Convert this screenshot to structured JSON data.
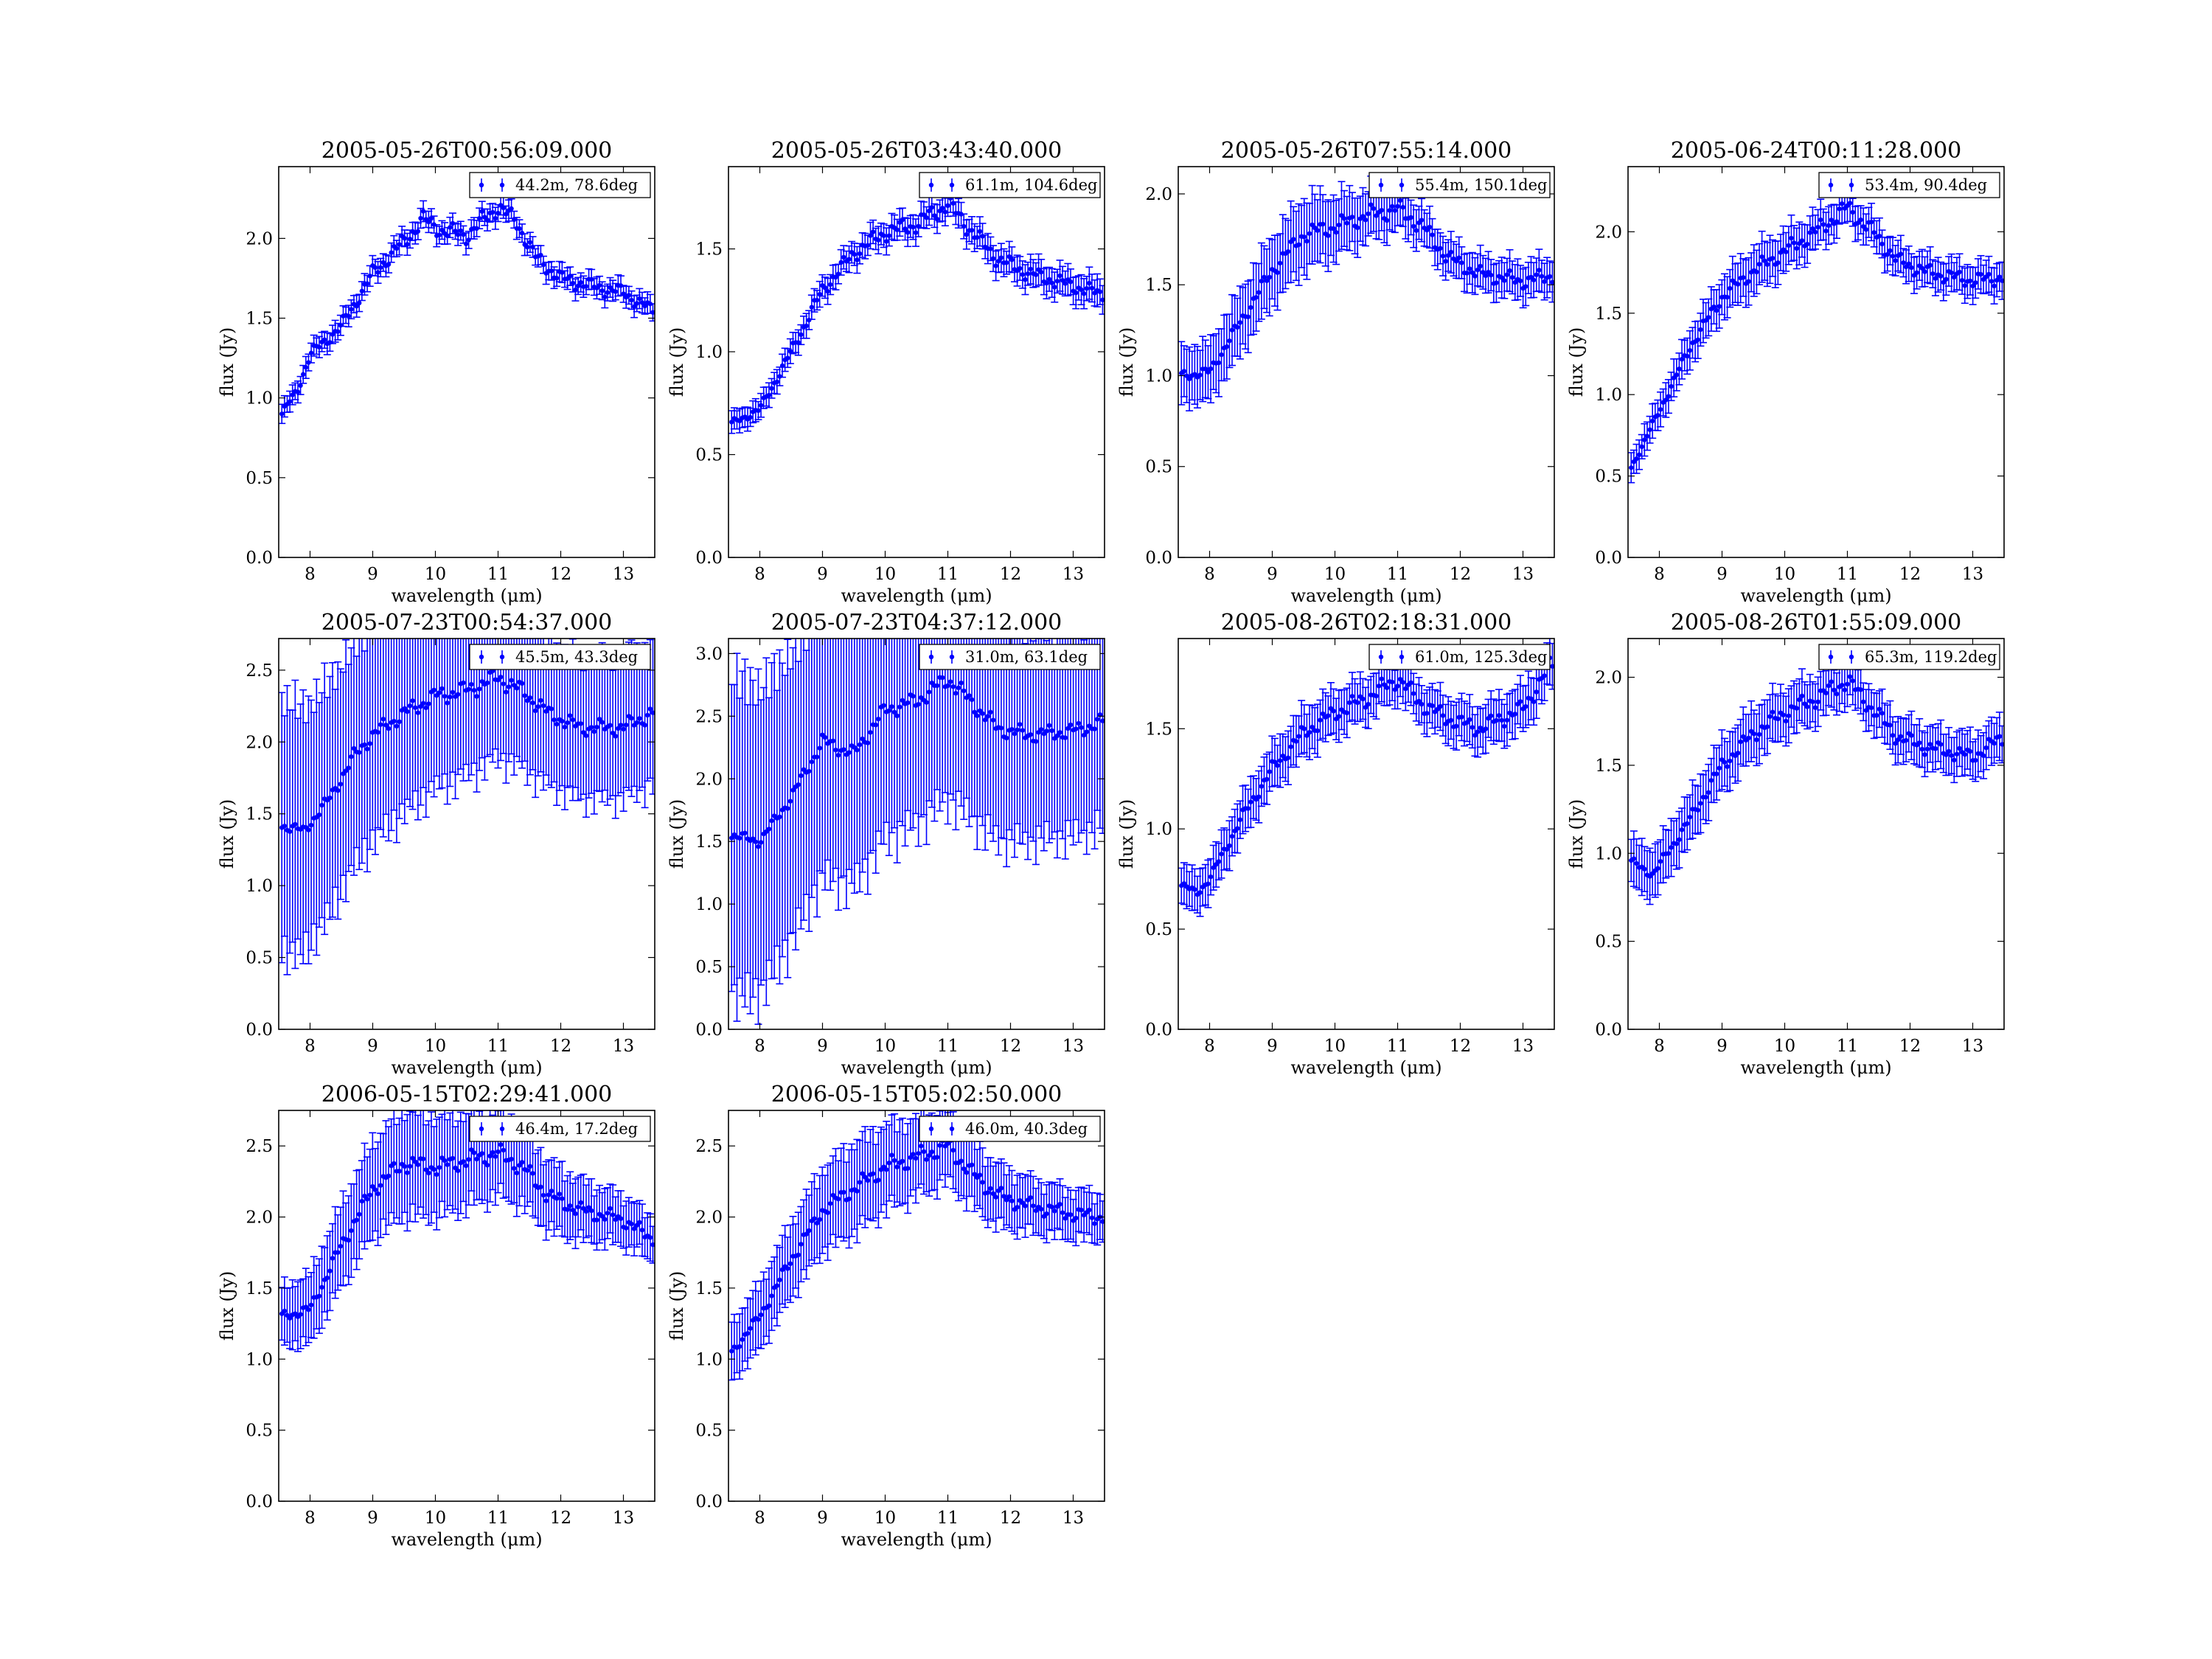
{
  "figure": {
    "xlabel": "wavelength (μm)",
    "ylabel": "flux (Jy)",
    "series_color": "#0000ff"
  },
  "chart_data": [
    {
      "type": "scatter",
      "title": "2005-05-26T00:56:09.000",
      "xlabel": "wavelength (μm)",
      "ylabel": "flux (Jy)",
      "xlim": [
        7.5,
        13.5
      ],
      "ylim": [
        0,
        2.45
      ],
      "xticks": [
        8,
        9,
        10,
        11,
        12,
        13
      ],
      "yticks": [
        0.0,
        0.5,
        1.0,
        1.5,
        2.0
      ],
      "legend": "44.2m, 78.6deg",
      "legend_loc": "top-right",
      "profile": [
        [
          7.55,
          0.9
        ],
        [
          7.8,
          1.05
        ],
        [
          8.0,
          1.27
        ],
        [
          8.5,
          1.45
        ],
        [
          9.0,
          1.78
        ],
        [
          9.5,
          1.98
        ],
        [
          9.8,
          2.12
        ],
        [
          10.1,
          2.05
        ],
        [
          10.5,
          2.02
        ],
        [
          11.0,
          2.2
        ],
        [
          11.3,
          2.1
        ],
        [
          11.6,
          1.88
        ],
        [
          12.0,
          1.75
        ],
        [
          12.5,
          1.7
        ],
        [
          13.0,
          1.66
        ],
        [
          13.45,
          1.55
        ]
      ],
      "err": [
        [
          7.5,
          0.06
        ],
        [
          13.5,
          0.06
        ]
      ]
    },
    {
      "type": "scatter",
      "title": "2005-05-26T03:43:40.000",
      "xlabel": "wavelength (μm)",
      "ylabel": "flux (Jy)",
      "xlim": [
        7.5,
        13.5
      ],
      "ylim": [
        0,
        1.9
      ],
      "xticks": [
        8,
        9,
        10,
        11,
        12,
        13
      ],
      "yticks": [
        0.0,
        0.5,
        1.0,
        1.5
      ],
      "legend": "61.1m, 104.6deg",
      "legend_loc": "top-right",
      "profile": [
        [
          7.55,
          0.65
        ],
        [
          8.0,
          0.72
        ],
        [
          8.5,
          1.0
        ],
        [
          9.0,
          1.3
        ],
        [
          9.5,
          1.48
        ],
        [
          10.0,
          1.58
        ],
        [
          10.5,
          1.62
        ],
        [
          11.0,
          1.72
        ],
        [
          11.4,
          1.58
        ],
        [
          11.8,
          1.45
        ],
        [
          12.3,
          1.38
        ],
        [
          13.0,
          1.32
        ],
        [
          13.45,
          1.28
        ]
      ],
      "err": [
        [
          7.5,
          0.05
        ],
        [
          13.5,
          0.07
        ]
      ]
    },
    {
      "type": "scatter",
      "title": "2005-05-26T07:55:14.000",
      "xlabel": "wavelength (μm)",
      "ylabel": "flux (Jy)",
      "xlim": [
        7.5,
        13.5
      ],
      "ylim": [
        0,
        2.15
      ],
      "xticks": [
        8,
        9,
        10,
        11,
        12,
        13
      ],
      "yticks": [
        0.0,
        0.5,
        1.0,
        1.5,
        2.0
      ],
      "legend": "55.4m, 150.1deg",
      "legend_loc": "top-right",
      "profile": [
        [
          7.55,
          1.0
        ],
        [
          8.0,
          1.02
        ],
        [
          8.5,
          1.3
        ],
        [
          9.0,
          1.58
        ],
        [
          9.5,
          1.78
        ],
        [
          10.0,
          1.82
        ],
        [
          10.5,
          1.88
        ],
        [
          11.0,
          1.92
        ],
        [
          11.4,
          1.82
        ],
        [
          11.8,
          1.65
        ],
        [
          12.3,
          1.56
        ],
        [
          13.0,
          1.52
        ],
        [
          13.45,
          1.55
        ]
      ],
      "err": [
        [
          7.5,
          0.15
        ],
        [
          9.5,
          0.2
        ],
        [
          10.5,
          0.14
        ],
        [
          11.5,
          0.1
        ],
        [
          13.5,
          0.1
        ]
      ]
    },
    {
      "type": "scatter",
      "title": "2005-06-24T00:11:28.000",
      "xlabel": "wavelength (μm)",
      "ylabel": "flux (Jy)",
      "xlim": [
        7.5,
        13.5
      ],
      "ylim": [
        0,
        2.4
      ],
      "xticks": [
        8,
        9,
        10,
        11,
        12,
        13
      ],
      "yticks": [
        0.0,
        0.5,
        1.0,
        1.5,
        2.0
      ],
      "legend": "53.4m, 90.4deg",
      "legend_loc": "top-right",
      "profile": [
        [
          7.55,
          0.55
        ],
        [
          8.0,
          0.9
        ],
        [
          8.5,
          1.3
        ],
        [
          9.0,
          1.6
        ],
        [
          9.5,
          1.76
        ],
        [
          10.0,
          1.88
        ],
        [
          10.5,
          2.0
        ],
        [
          11.0,
          2.15
        ],
        [
          11.4,
          2.0
        ],
        [
          11.8,
          1.82
        ],
        [
          12.3,
          1.75
        ],
        [
          13.0,
          1.7
        ],
        [
          13.45,
          1.72
        ]
      ],
      "err": [
        [
          7.5,
          0.08
        ],
        [
          9.5,
          0.14
        ],
        [
          11.0,
          0.1
        ],
        [
          13.5,
          0.1
        ]
      ]
    },
    {
      "type": "scatter",
      "title": "2005-07-23T00:54:37.000",
      "xlabel": "wavelength (μm)",
      "ylabel": "flux (Jy)",
      "xlim": [
        7.5,
        13.5
      ],
      "ylim": [
        0,
        2.72
      ],
      "xticks": [
        8,
        9,
        10,
        11,
        12,
        13
      ],
      "yticks": [
        0.0,
        0.5,
        1.0,
        1.5,
        2.0,
        2.5
      ],
      "legend": "45.5m, 43.3deg",
      "legend_loc": "top-right",
      "profile": [
        [
          7.55,
          1.42
        ],
        [
          7.9,
          1.38
        ],
        [
          8.3,
          1.6
        ],
        [
          8.7,
          1.9
        ],
        [
          9.0,
          2.05
        ],
        [
          9.5,
          2.2
        ],
        [
          10.0,
          2.32
        ],
        [
          10.5,
          2.36
        ],
        [
          11.0,
          2.45
        ],
        [
          11.4,
          2.35
        ],
        [
          11.8,
          2.2
        ],
        [
          12.3,
          2.1
        ],
        [
          13.0,
          2.1
        ],
        [
          13.45,
          2.2
        ]
      ],
      "err": [
        [
          7.5,
          0.9
        ],
        [
          9.0,
          0.75
        ],
        [
          10.5,
          0.6
        ],
        [
          11.2,
          0.55
        ],
        [
          12.0,
          0.5
        ],
        [
          13.5,
          0.5
        ]
      ]
    },
    {
      "type": "scatter",
      "title": "2005-07-23T04:37:12.000",
      "xlabel": "wavelength (μm)",
      "ylabel": "flux (Jy)",
      "xlim": [
        7.5,
        13.5
      ],
      "ylim": [
        0,
        3.12
      ],
      "xticks": [
        8,
        9,
        10,
        11,
        12,
        13
      ],
      "yticks": [
        0.0,
        0.5,
        1.0,
        1.5,
        2.0,
        2.5,
        3.0
      ],
      "legend": "31.0m, 63.1deg",
      "legend_loc": "top-right",
      "profile": [
        [
          7.55,
          1.55
        ],
        [
          8.0,
          1.5
        ],
        [
          8.5,
          1.85
        ],
        [
          9.0,
          2.3
        ],
        [
          9.5,
          2.2
        ],
        [
          10.0,
          2.55
        ],
        [
          10.5,
          2.62
        ],
        [
          11.0,
          2.8
        ],
        [
          11.4,
          2.6
        ],
        [
          11.8,
          2.4
        ],
        [
          12.3,
          2.35
        ],
        [
          13.0,
          2.38
        ],
        [
          13.45,
          2.45
        ]
      ],
      "err": [
        [
          7.5,
          1.3
        ],
        [
          9.0,
          1.1
        ],
        [
          10.5,
          1.0
        ],
        [
          11.2,
          0.95
        ],
        [
          12.5,
          0.85
        ],
        [
          13.5,
          0.85
        ]
      ]
    },
    {
      "type": "scatter",
      "title": "2005-08-26T02:18:31.000",
      "xlabel": "wavelength (μm)",
      "ylabel": "flux (Jy)",
      "xlim": [
        7.5,
        13.5
      ],
      "ylim": [
        0,
        1.95
      ],
      "xticks": [
        8,
        9,
        10,
        11,
        12,
        13
      ],
      "yticks": [
        0.0,
        0.5,
        1.0,
        1.5
      ],
      "legend": "61.0m, 125.3deg",
      "legend_loc": "top-right",
      "profile": [
        [
          7.55,
          0.72
        ],
        [
          7.8,
          0.68
        ],
        [
          8.0,
          0.75
        ],
        [
          8.5,
          1.05
        ],
        [
          9.0,
          1.3
        ],
        [
          9.5,
          1.48
        ],
        [
          10.0,
          1.58
        ],
        [
          10.5,
          1.65
        ],
        [
          11.0,
          1.75
        ],
        [
          11.4,
          1.62
        ],
        [
          11.8,
          1.55
        ],
        [
          12.3,
          1.5
        ],
        [
          13.0,
          1.6
        ],
        [
          13.45,
          1.82
        ]
      ],
      "err": [
        [
          7.5,
          0.1
        ],
        [
          9.5,
          0.12
        ],
        [
          11.0,
          0.1
        ],
        [
          13.5,
          0.12
        ]
      ]
    },
    {
      "type": "scatter",
      "title": "2005-08-26T01:55:09.000",
      "xlabel": "wavelength (μm)",
      "ylabel": "flux (Jy)",
      "xlim": [
        7.5,
        13.5
      ],
      "ylim": [
        0,
        2.22
      ],
      "xticks": [
        8,
        9,
        10,
        11,
        12,
        13
      ],
      "yticks": [
        0.0,
        0.5,
        1.0,
        1.5,
        2.0
      ],
      "legend": "65.3m, 119.2deg",
      "legend_loc": "top-right",
      "profile": [
        [
          7.55,
          0.95
        ],
        [
          7.9,
          0.88
        ],
        [
          8.5,
          1.2
        ],
        [
          9.0,
          1.5
        ],
        [
          9.5,
          1.68
        ],
        [
          10.0,
          1.8
        ],
        [
          10.5,
          1.88
        ],
        [
          11.0,
          1.98
        ],
        [
          11.4,
          1.82
        ],
        [
          11.8,
          1.66
        ],
        [
          12.3,
          1.6
        ],
        [
          13.0,
          1.55
        ],
        [
          13.45,
          1.65
        ]
      ],
      "err": [
        [
          7.5,
          0.14
        ],
        [
          9.5,
          0.15
        ],
        [
          11.0,
          0.12
        ],
        [
          13.5,
          0.12
        ]
      ]
    },
    {
      "type": "scatter",
      "title": "2006-05-15T02:29:41.000",
      "xlabel": "wavelength (μm)",
      "ylabel": "flux (Jy)",
      "xlim": [
        7.5,
        13.5
      ],
      "ylim": [
        0,
        2.75
      ],
      "xticks": [
        8,
        9,
        10,
        11,
        12,
        13
      ],
      "yticks": [
        0.0,
        0.5,
        1.0,
        1.5,
        2.0,
        2.5
      ],
      "legend": "46.4m, 17.2deg",
      "legend_loc": "top-right",
      "profile": [
        [
          7.55,
          1.3
        ],
        [
          8.0,
          1.35
        ],
        [
          8.5,
          1.8
        ],
        [
          9.0,
          2.2
        ],
        [
          9.5,
          2.38
        ],
        [
          10.0,
          2.35
        ],
        [
          10.5,
          2.4
        ],
        [
          11.0,
          2.45
        ],
        [
          11.4,
          2.35
        ],
        [
          11.8,
          2.15
        ],
        [
          12.3,
          2.05
        ],
        [
          13.0,
          1.98
        ],
        [
          13.45,
          1.85
        ]
      ],
      "err": [
        [
          7.5,
          0.2
        ],
        [
          9.5,
          0.38
        ],
        [
          11.0,
          0.3
        ],
        [
          12.5,
          0.2
        ],
        [
          13.5,
          0.15
        ]
      ]
    },
    {
      "type": "scatter",
      "title": "2006-05-15T05:02:50.000",
      "xlabel": "wavelength (μm)",
      "ylabel": "flux (Jy)",
      "xlim": [
        7.5,
        13.5
      ],
      "ylim": [
        0,
        2.75
      ],
      "xticks": [
        8,
        9,
        10,
        11,
        12,
        13
      ],
      "yticks": [
        0.0,
        0.5,
        1.0,
        1.5,
        2.0,
        2.5
      ],
      "legend": "46.0m, 40.3deg",
      "legend_loc": "top-right",
      "profile": [
        [
          7.55,
          1.05
        ],
        [
          8.0,
          1.3
        ],
        [
          8.5,
          1.7
        ],
        [
          9.0,
          2.05
        ],
        [
          9.5,
          2.2
        ],
        [
          10.0,
          2.35
        ],
        [
          10.5,
          2.42
        ],
        [
          11.0,
          2.5
        ],
        [
          11.4,
          2.3
        ],
        [
          11.8,
          2.15
        ],
        [
          12.3,
          2.08
        ],
        [
          13.0,
          2.02
        ],
        [
          13.45,
          2.0
        ]
      ],
      "err": [
        [
          7.5,
          0.2
        ],
        [
          9.5,
          0.32
        ],
        [
          11.0,
          0.25
        ],
        [
          12.5,
          0.18
        ],
        [
          13.5,
          0.16
        ]
      ]
    }
  ]
}
